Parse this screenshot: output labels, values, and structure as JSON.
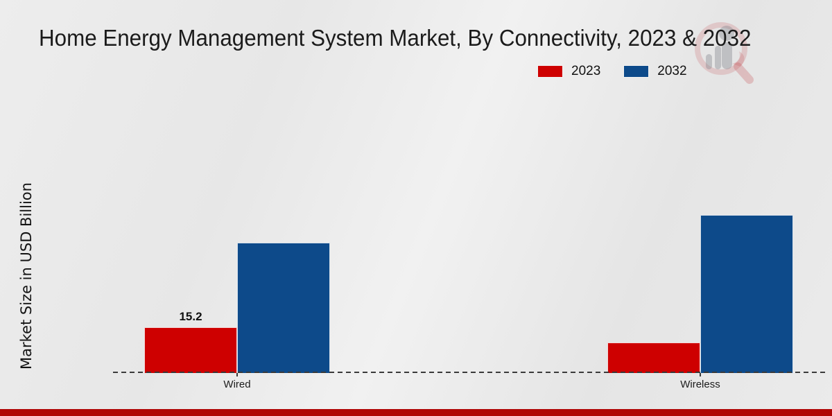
{
  "title": "Home Energy Management System Market, By Connectivity, 2023 & 2032",
  "y_axis_label": "Market Size in USD Billion",
  "legend": {
    "items": [
      {
        "label": "2023",
        "color": "#CE0000"
      },
      {
        "label": "2032",
        "color": "#0D4A8A"
      }
    ]
  },
  "colors": {
    "series_2023": "#CE0000",
    "series_2032": "#0D4A8A",
    "footer_bar": "#B00505",
    "axis_line": "#3A3A3A",
    "text": "#1B1B1B"
  },
  "watermark_icon": "magnifier-bar-chart-logo",
  "chart_data": {
    "type": "bar",
    "categories": [
      "Wired",
      "Wireless"
    ],
    "series": [
      {
        "name": "2023",
        "color": "#CE0000",
        "values": [
          15.2,
          10.1
        ]
      },
      {
        "name": "2032",
        "color": "#0D4A8A",
        "values": [
          43.0,
          52.1
        ]
      }
    ],
    "value_labels": [
      [
        "15.2",
        ""
      ],
      [
        "",
        ""
      ]
    ],
    "title": "Home Energy Management System Market, By Connectivity, 2023 & 2032",
    "xlabel": "",
    "ylabel": "Market Size in USD Billion",
    "ylim": [
      0,
      55
    ],
    "grid": false,
    "legend_position": "top-right",
    "x_axis_style": "dashed-baseline-only",
    "annotations": [
      "Only the 2023 Wired bar carries a printed value label: 15.2"
    ]
  }
}
